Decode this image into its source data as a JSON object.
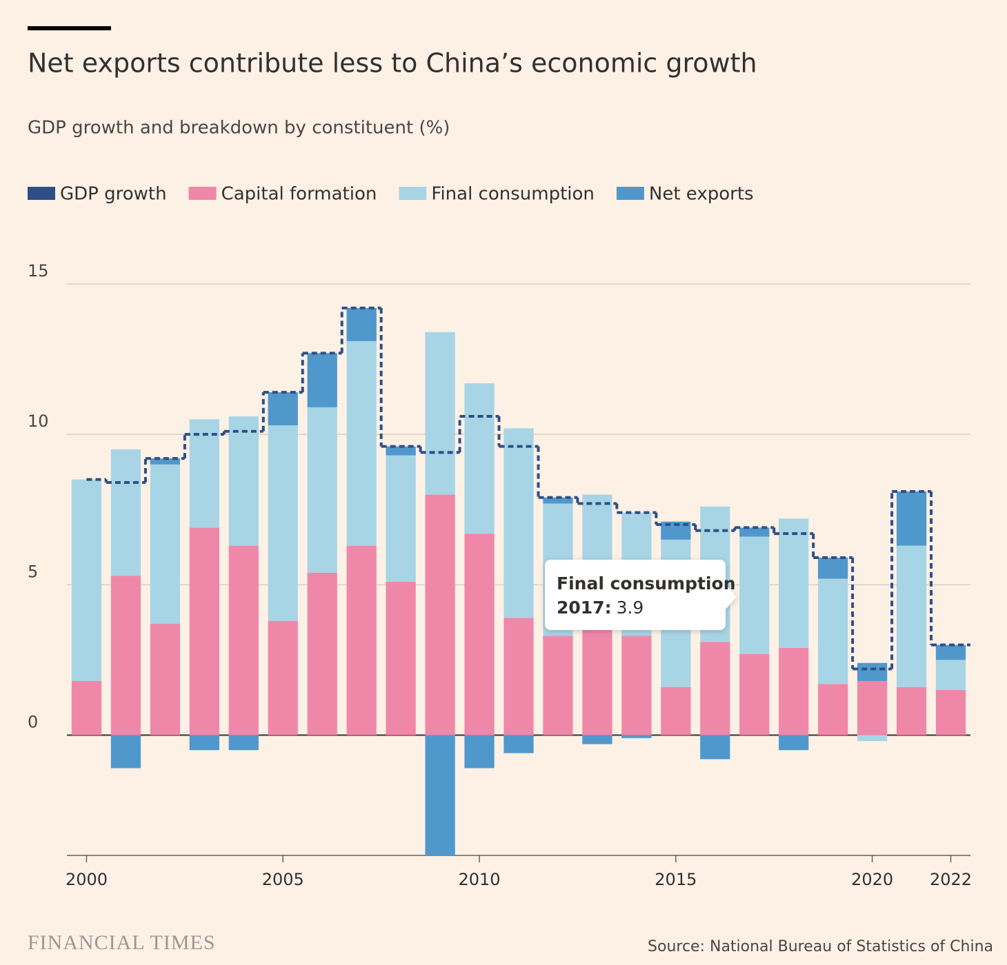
{
  "chart_data": {
    "type": "bar",
    "title": "Net exports contribute less to China’s economic growth",
    "subtitle": "GDP growth and breakdown by constituent (%)",
    "x": [
      2000,
      2001,
      2002,
      2003,
      2004,
      2005,
      2006,
      2007,
      2008,
      2009,
      2010,
      2011,
      2012,
      2013,
      2014,
      2015,
      2016,
      2017,
      2018,
      2019,
      2020,
      2021,
      2022
    ],
    "series": [
      {
        "name": "GDP growth",
        "color": "#2e4f86",
        "type": "step",
        "values": [
          8.5,
          8.4,
          9.2,
          10.0,
          10.1,
          11.4,
          12.7,
          14.2,
          9.6,
          9.4,
          10.6,
          9.6,
          7.9,
          7.7,
          7.4,
          7.0,
          6.8,
          6.9,
          6.7,
          5.9,
          2.2,
          8.1,
          3.0
        ]
      },
      {
        "name": "Capital formation",
        "color": "#ef88a8",
        "values": [
          1.8,
          5.3,
          3.7,
          6.9,
          6.3,
          3.8,
          5.4,
          6.3,
          5.1,
          8.0,
          6.7,
          3.9,
          3.3,
          4.3,
          3.3,
          1.6,
          3.1,
          2.7,
          2.9,
          1.7,
          1.8,
          1.6,
          1.5
        ]
      },
      {
        "name": "Final consumption",
        "color": "#a8d5e6",
        "values": [
          6.7,
          4.2,
          5.3,
          3.6,
          4.3,
          6.5,
          5.5,
          6.8,
          4.2,
          5.4,
          5.0,
          6.3,
          4.4,
          3.7,
          4.1,
          4.9,
          4.5,
          3.9,
          4.3,
          3.5,
          -0.2,
          4.7,
          1.0
        ]
      },
      {
        "name": "Net exports",
        "color": "#5098cc",
        "values": [
          0.0,
          -1.1,
          0.2,
          -0.5,
          -0.5,
          1.1,
          1.8,
          1.1,
          0.3,
          -4.0,
          -1.1,
          -0.6,
          0.2,
          -0.3,
          -0.1,
          0.6,
          -0.8,
          0.3,
          -0.5,
          0.7,
          0.6,
          1.8,
          0.5
        ]
      }
    ],
    "xlim": [
      1999.5,
      2022.5
    ],
    "xticks": [
      2000,
      2005,
      2010,
      2015,
      2020,
      2022
    ],
    "ylim": [
      -4,
      15
    ],
    "yticks": [
      0,
      5,
      10,
      15
    ],
    "grid": true,
    "tooltip": {
      "title": "Final consumption",
      "category": "2017:"
    },
    "source": "Source: National Bureau of Statistics of China",
    "brand": "FINANCIAL TIMES"
  }
}
